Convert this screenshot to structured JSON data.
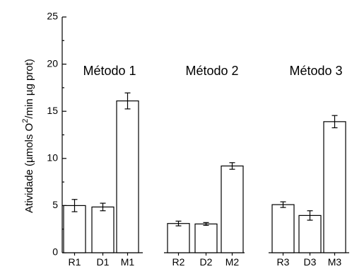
{
  "chart_data": {
    "type": "bar",
    "categories": [
      "R1",
      "D1",
      "M1",
      "R2",
      "D2",
      "M2",
      "R3",
      "D3",
      "M3"
    ],
    "values": [
      5.0,
      4.85,
      16.1,
      3.1,
      3.05,
      9.2,
      5.1,
      3.95,
      13.9
    ],
    "errors": [
      0.65,
      0.4,
      0.85,
      0.25,
      0.15,
      0.35,
      0.3,
      0.5,
      0.65
    ],
    "groups": [
      {
        "label": "Método 1",
        "categories": [
          "R1",
          "D1",
          "M1"
        ]
      },
      {
        "label": "Método 2",
        "categories": [
          "R2",
          "D2",
          "M2"
        ]
      },
      {
        "label": "Método 3",
        "categories": [
          "R3",
          "D3",
          "M3"
        ]
      }
    ],
    "ylabel_main": "Atividade (µmols O",
    "ylabel_sup": "2",
    "ylabel_end": "/min µg prot)",
    "ylim": [
      0,
      25
    ],
    "yticks": [
      "0",
      "5",
      "10",
      "15",
      "20",
      "25"
    ],
    "grid": false,
    "bar_fill": "#ffffff",
    "bar_stroke": "#000000"
  }
}
